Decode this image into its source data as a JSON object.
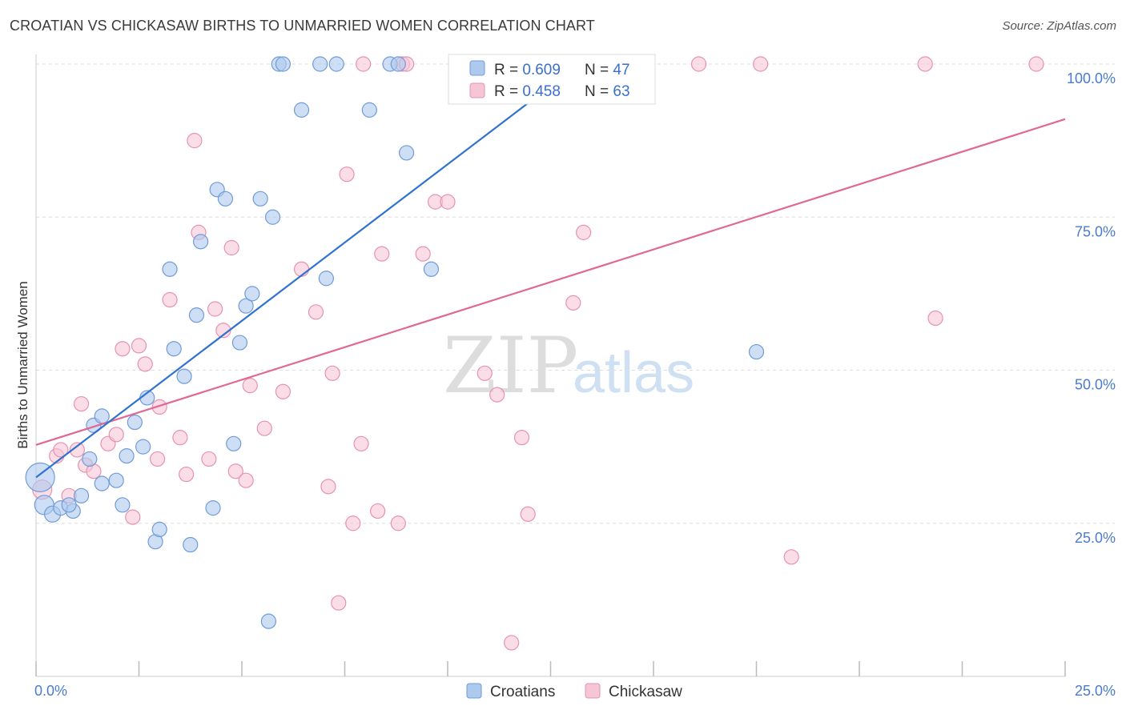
{
  "title": "CROATIAN VS CHICKASAW BIRTHS TO UNMARRIED WOMEN CORRELATION CHART",
  "source": "Source: ZipAtlas.com",
  "watermark": {
    "zip": "ZIP",
    "atlas": "atlas"
  },
  "colors": {
    "croatians_fill": "#aec9ee",
    "croatians_stroke": "#6f9bd8",
    "croatians_line": "#2f72d0",
    "chickasaw_fill": "#f6c6d6",
    "chickasaw_stroke": "#e693b0",
    "chickasaw_line": "#e06892",
    "grid": "#dddddd",
    "axis_text": "#4a7bd0"
  },
  "legend": {
    "rows": [
      {
        "r_label": "R = ",
        "r_value": "0.609",
        "n_label": "N = ",
        "n_value": "47"
      },
      {
        "r_label": "R = ",
        "r_value": "0.458",
        "n_label": "N = ",
        "n_value": "63"
      }
    ],
    "placement": "top-center"
  },
  "bottom_legend": [
    "Croatians",
    "Chickasaw"
  ],
  "chart_data": {
    "type": "scatter",
    "xlabel": "",
    "ylabel": "Births to Unmarried Women",
    "xlim": [
      0,
      25
    ],
    "ylim": [
      0,
      100
    ],
    "x_tick_labels": [
      "0.0%",
      "25.0%"
    ],
    "y_tick_labels": [
      "25.0%",
      "50.0%",
      "75.0%",
      "100.0%"
    ],
    "y_ticks": [
      25,
      50,
      75,
      100
    ],
    "grid": true,
    "series": [
      {
        "name": "Croatians",
        "r": 0.609,
        "n": 47,
        "trend": {
          "x": [
            0,
            13.2
          ],
          "y": [
            32.5,
            100
          ]
        },
        "points": [
          [
            0.1,
            32.5,
            18
          ],
          [
            0.2,
            28.0,
            12
          ],
          [
            0.4,
            26.5,
            10
          ],
          [
            0.6,
            27.5,
            9
          ],
          [
            0.9,
            27.0,
            9
          ],
          [
            0.8,
            28.0,
            9
          ],
          [
            1.1,
            29.5,
            9
          ],
          [
            1.3,
            35.5,
            9
          ],
          [
            1.4,
            41.0,
            9
          ],
          [
            1.6,
            42.5,
            9
          ],
          [
            1.6,
            31.5,
            9
          ],
          [
            1.95,
            32.0,
            9
          ],
          [
            2.1,
            28.0,
            9
          ],
          [
            2.2,
            36.0,
            9
          ],
          [
            2.4,
            41.5,
            9
          ],
          [
            2.6,
            37.5,
            9
          ],
          [
            2.7,
            45.5,
            9
          ],
          [
            2.9,
            22.0,
            9
          ],
          [
            3.0,
            24.0,
            9
          ],
          [
            3.25,
            66.5,
            9
          ],
          [
            3.35,
            53.5,
            9
          ],
          [
            3.6,
            49.0,
            9
          ],
          [
            3.75,
            21.5,
            9
          ],
          [
            3.9,
            59.0,
            9
          ],
          [
            4.0,
            71.0,
            9
          ],
          [
            4.3,
            27.5,
            9
          ],
          [
            4.4,
            79.5,
            9
          ],
          [
            4.6,
            78.0,
            9
          ],
          [
            4.8,
            38.0,
            9
          ],
          [
            4.95,
            54.5,
            9
          ],
          [
            5.1,
            60.5,
            9
          ],
          [
            5.25,
            62.5,
            9
          ],
          [
            5.45,
            78.0,
            9
          ],
          [
            5.65,
            9.0,
            9
          ],
          [
            5.75,
            75.0,
            9
          ],
          [
            5.9,
            100,
            9
          ],
          [
            6.0,
            100,
            9
          ],
          [
            6.45,
            92.5,
            9
          ],
          [
            6.9,
            100,
            9
          ],
          [
            7.3,
            100,
            9
          ],
          [
            7.05,
            65.0,
            9
          ],
          [
            8.1,
            92.5,
            9
          ],
          [
            8.6,
            100,
            9
          ],
          [
            8.8,
            100,
            9
          ],
          [
            9.0,
            85.5,
            9
          ],
          [
            9.6,
            66.5,
            9
          ],
          [
            17.5,
            53.0,
            9
          ]
        ]
      },
      {
        "name": "Chickasaw",
        "r": 0.458,
        "n": 63,
        "trend": {
          "x": [
            0,
            25
          ],
          "y": [
            37.8,
            91.0
          ]
        },
        "points": [
          [
            0.15,
            30.5,
            12
          ],
          [
            0.5,
            36.0,
            9
          ],
          [
            0.6,
            37.0,
            9
          ],
          [
            0.8,
            29.5,
            9
          ],
          [
            1.0,
            37.0,
            9
          ],
          [
            1.1,
            44.5,
            9
          ],
          [
            1.2,
            34.5,
            9
          ],
          [
            1.4,
            33.5,
            9
          ],
          [
            1.75,
            38.0,
            9
          ],
          [
            1.95,
            39.5,
            9
          ],
          [
            2.1,
            53.5,
            9
          ],
          [
            2.35,
            26.0,
            9
          ],
          [
            2.5,
            54.0,
            9
          ],
          [
            2.65,
            51.0,
            9
          ],
          [
            2.95,
            35.5,
            9
          ],
          [
            3.0,
            44.0,
            9
          ],
          [
            3.25,
            61.5,
            9
          ],
          [
            3.5,
            39.0,
            9
          ],
          [
            3.65,
            33.0,
            9
          ],
          [
            3.85,
            87.5,
            9
          ],
          [
            3.95,
            72.5,
            9
          ],
          [
            4.2,
            35.5,
            9
          ],
          [
            4.35,
            60.0,
            9
          ],
          [
            4.55,
            56.5,
            9
          ],
          [
            4.75,
            70.0,
            9
          ],
          [
            4.85,
            33.5,
            9
          ],
          [
            5.1,
            32.0,
            9
          ],
          [
            5.2,
            47.5,
            9
          ],
          [
            5.55,
            40.5,
            9
          ],
          [
            6.0,
            46.5,
            9
          ],
          [
            6.45,
            66.5,
            9
          ],
          [
            6.8,
            59.5,
            9
          ],
          [
            7.1,
            31.0,
            9
          ],
          [
            7.2,
            49.5,
            9
          ],
          [
            7.35,
            12.0,
            9
          ],
          [
            7.55,
            82.0,
            9
          ],
          [
            7.7,
            25.0,
            9
          ],
          [
            7.95,
            100,
            9
          ],
          [
            7.9,
            38.0,
            9
          ],
          [
            8.3,
            27.0,
            9
          ],
          [
            8.4,
            69.0,
            9
          ],
          [
            8.8,
            25.0,
            9
          ],
          [
            8.9,
            100,
            9
          ],
          [
            9.4,
            69.0,
            9
          ],
          [
            9.7,
            77.5,
            9
          ],
          [
            10.0,
            77.5,
            9
          ],
          [
            10.9,
            49.5,
            9
          ],
          [
            11.2,
            46.0,
            9
          ],
          [
            11.55,
            5.5,
            9
          ],
          [
            11.8,
            39.0,
            9
          ],
          [
            11.95,
            26.5,
            9
          ],
          [
            12.5,
            100,
            9
          ],
          [
            13.05,
            61.0,
            9
          ],
          [
            13.3,
            72.5,
            9
          ],
          [
            13.7,
            100,
            9
          ],
          [
            16.1,
            100,
            9
          ],
          [
            17.6,
            100,
            9
          ],
          [
            18.35,
            19.5,
            9
          ],
          [
            21.6,
            100,
            9
          ],
          [
            21.85,
            58.5,
            9
          ],
          [
            24.3,
            100,
            9
          ],
          [
            12.6,
            100,
            9
          ],
          [
            9.0,
            100,
            9
          ]
        ]
      }
    ]
  }
}
